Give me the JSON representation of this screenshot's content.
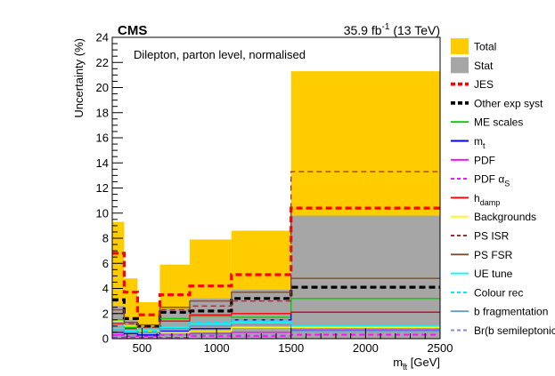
{
  "chart_data": {
    "type": "step",
    "experiment": "CMS",
    "lumi": {
      "main": "35.9 fb",
      "sup": "-1",
      "tail": " (13 TeV)"
    },
    "annotation": "Dilepton, parton level, normalised",
    "xlabel": {
      "main": "m",
      "sub": "t̅t",
      "unit": " [GeV]"
    },
    "ylabel": "Uncertainty (%)",
    "xlim": [
      300,
      2500
    ],
    "ylim": [
      0,
      24
    ],
    "xticks": [
      500,
      1000,
      1500,
      2000,
      2500
    ],
    "yticks": [
      0,
      2,
      4,
      6,
      8,
      10,
      12,
      14,
      16,
      18,
      20,
      22,
      24
    ],
    "bin_edges": [
      300,
      380,
      470,
      620,
      820,
      1100,
      1500,
      2500
    ],
    "series": [
      {
        "name": "Total",
        "kind": "fill",
        "color": "#ffcc00",
        "values": [
          9.3,
          4.8,
          2.9,
          5.9,
          7.9,
          8.6,
          21.3
        ]
      },
      {
        "name": "Stat",
        "kind": "fill",
        "color": "#a6a6a6",
        "values": [
          2.6,
          1.5,
          1.0,
          2.4,
          3.2,
          3.9,
          9.8
        ]
      },
      {
        "name": "JES",
        "kind": "line",
        "color": "#ff0000",
        "dash": "thick-dash",
        "values": [
          6.8,
          3.7,
          1.9,
          3.5,
          4.2,
          5.1,
          10.4
        ]
      },
      {
        "name": "Other exp syst",
        "kind": "line",
        "color": "#000000",
        "dash": "thick-dash",
        "values": [
          3.1,
          1.6,
          1.0,
          2.1,
          2.2,
          3.2,
          4.1
        ]
      },
      {
        "name": "ME scales",
        "kind": "line",
        "color": "#00cc00",
        "dash": "solid",
        "values": [
          1.5,
          0.9,
          0.5,
          1.6,
          1.8,
          1.7,
          3.2
        ]
      },
      {
        "name": "m",
        "sub": "t",
        "kind": "line",
        "color": "#0000ff",
        "dash": "solid",
        "values": [
          0.5,
          0.4,
          0.3,
          0.6,
          0.8,
          1.5,
          2.1
        ]
      },
      {
        "name": "PDF",
        "kind": "line",
        "color": "#ff00ff",
        "dash": "solid",
        "values": [
          0.3,
          0.2,
          0.2,
          0.3,
          0.4,
          0.5,
          0.7
        ]
      },
      {
        "name": "PDF α",
        "sub": "S",
        "kind": "line",
        "color": "#ff00ff",
        "dash": "dash",
        "values": [
          0.1,
          0.1,
          0.1,
          0.1,
          0.2,
          0.2,
          0.3
        ]
      },
      {
        "name": "h",
        "sub": "damp",
        "kind": "line",
        "color": "#ff0000",
        "dash": "solid",
        "values": [
          1.2,
          0.8,
          0.5,
          1.4,
          1.9,
          2.0,
          2.1
        ]
      },
      {
        "name": "Backgrounds",
        "kind": "line",
        "color": "#ffff00",
        "dash": "solid",
        "values": [
          1.4,
          1.0,
          0.6,
          0.5,
          0.6,
          0.9,
          0.9
        ]
      },
      {
        "name": "PS ISR",
        "kind": "line",
        "color": "#993333",
        "dash": "dash",
        "values": [
          2.0,
          1.2,
          0.9,
          2.3,
          2.6,
          3.0,
          13.3
        ]
      },
      {
        "name": "PS FSR",
        "kind": "line",
        "color": "#7a4b33",
        "dash": "solid",
        "values": [
          2.3,
          1.3,
          1.1,
          2.5,
          3.0,
          3.7,
          4.8
        ]
      },
      {
        "name": "UE tune",
        "kind": "line",
        "color": "#00ffff",
        "dash": "solid",
        "values": [
          0.8,
          0.6,
          0.7,
          0.9,
          1.2,
          1.3,
          1.0
        ]
      },
      {
        "name": "Colour rec",
        "kind": "line",
        "color": "#00e5ff",
        "dash": "dash",
        "values": [
          1.0,
          0.7,
          0.6,
          1.1,
          1.3,
          1.5,
          0.8
        ]
      },
      {
        "name": "b fragmentation",
        "kind": "line",
        "color": "#6699cc",
        "dash": "solid",
        "values": [
          0.7,
          0.5,
          0.5,
          0.8,
          1.0,
          1.1,
          0.6
        ]
      },
      {
        "name": "Br(b semileptonic)",
        "kind": "line",
        "color": "#8888cc",
        "dash": "dash",
        "values": [
          0.2,
          0.2,
          0.2,
          0.3,
          0.3,
          0.3,
          0.4
        ]
      }
    ]
  }
}
